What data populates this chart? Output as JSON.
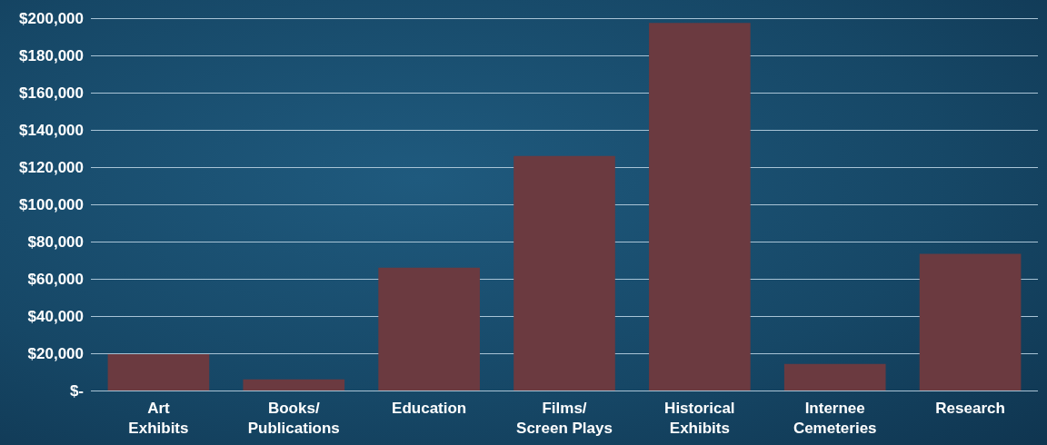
{
  "chart_data": {
    "type": "bar",
    "categories": [
      "Art\nExhibits",
      "Books/\nPublications",
      "Education",
      "Films/\nScreen Plays",
      "Historical\nExhibits",
      "Internee\nCemeteries",
      "Research"
    ],
    "values": [
      19500,
      6000,
      66000,
      126000,
      197500,
      14300,
      73400
    ],
    "color": "#6b3a40",
    "ylim": [
      0,
      200000
    ],
    "yticks": [
      {
        "value": 0,
        "label": "$-"
      },
      {
        "value": 20000,
        "label": "$20,000"
      },
      {
        "value": 40000,
        "label": "$40,000"
      },
      {
        "value": 60000,
        "label": "$60,000"
      },
      {
        "value": 80000,
        "label": "$80,000"
      },
      {
        "value": 100000,
        "label": "$100,000"
      },
      {
        "value": 120000,
        "label": "$120,000"
      },
      {
        "value": 140000,
        "label": "$140,000"
      },
      {
        "value": 160000,
        "label": "$160,000"
      },
      {
        "value": 180000,
        "label": "$180,000"
      },
      {
        "value": 200000,
        "label": "$200,000"
      }
    ],
    "grid": "y"
  }
}
